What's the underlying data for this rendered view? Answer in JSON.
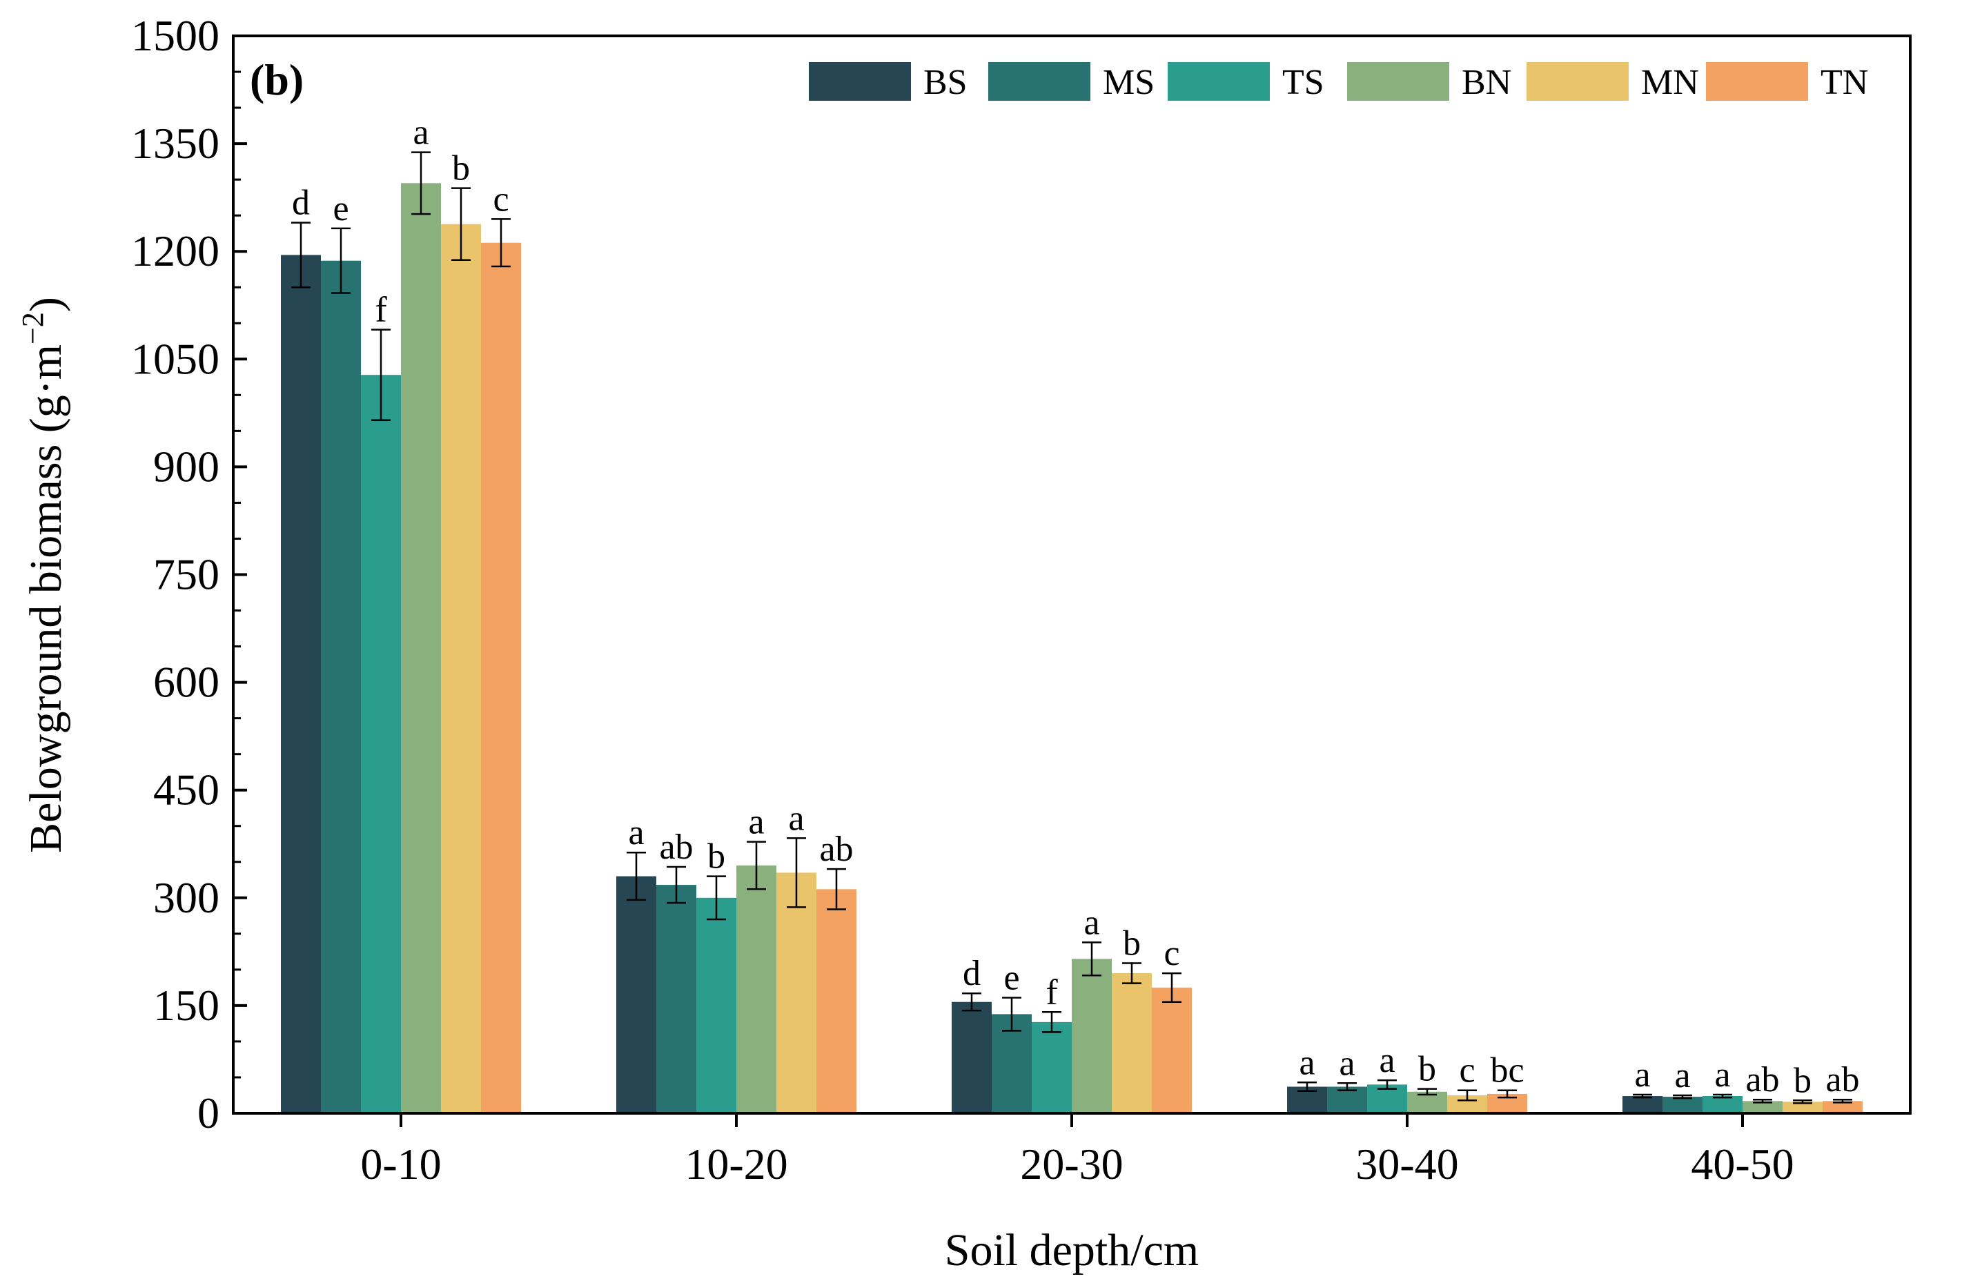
{
  "chart_data": {
    "type": "bar",
    "panel_label": "(b)",
    "xlabel": "Soil depth/cm",
    "ylabel": "Belowground biomass (g·m",
    "ylabel_sup": "−2",
    "ylabel_close": ")",
    "ylim": [
      0,
      1500
    ],
    "yticks": [
      0,
      150,
      300,
      450,
      600,
      750,
      900,
      1050,
      1200,
      1350,
      1500
    ],
    "ytick_labels": [
      "0",
      "150",
      "300",
      "450",
      "600",
      "750",
      "900",
      "1050",
      "1200",
      "1350",
      "1500"
    ],
    "categories": [
      "0-10",
      "10-20",
      "20-30",
      "30-40",
      "40-50"
    ],
    "legend_position": "top-right",
    "series": [
      {
        "name": "BS",
        "color": "#264653",
        "values": [
          1195,
          330,
          155,
          37,
          24
        ],
        "errors": [
          45,
          33,
          12,
          6,
          2
        ],
        "labels": [
          "d",
          "a",
          "d",
          "a",
          "a"
        ]
      },
      {
        "name": "MS",
        "color": "#287271",
        "values": [
          1187,
          318,
          138,
          37,
          23
        ],
        "errors": [
          45,
          25,
          23,
          5,
          2
        ],
        "labels": [
          "e",
          "ab",
          "e",
          "a",
          "a"
        ]
      },
      {
        "name": "TS",
        "color": "#2A9D8F",
        "values": [
          1028,
          300,
          127,
          40,
          24
        ],
        "errors": [
          63,
          30,
          14,
          6,
          2
        ],
        "labels": [
          "f",
          "b",
          "f",
          "a",
          "a"
        ]
      },
      {
        "name": "BN",
        "color": "#8AB17D",
        "values": [
          1295,
          345,
          215,
          30,
          17
        ],
        "errors": [
          43,
          33,
          23,
          4,
          2
        ],
        "labels": [
          "a",
          "a",
          "a",
          "b",
          "ab"
        ]
      },
      {
        "name": "MN",
        "color": "#E9C46A",
        "values": [
          1238,
          335,
          195,
          25,
          16
        ],
        "errors": [
          50,
          48,
          14,
          7,
          2
        ],
        "labels": [
          "b",
          "a",
          "b",
          "c",
          "b"
        ]
      },
      {
        "name": "TN",
        "color": "#F4A261",
        "values": [
          1212,
          312,
          175,
          27,
          17
        ],
        "errors": [
          33,
          28,
          20,
          5,
          2
        ],
        "labels": [
          "c",
          "ab",
          "c",
          "bc",
          "ab"
        ]
      }
    ]
  }
}
